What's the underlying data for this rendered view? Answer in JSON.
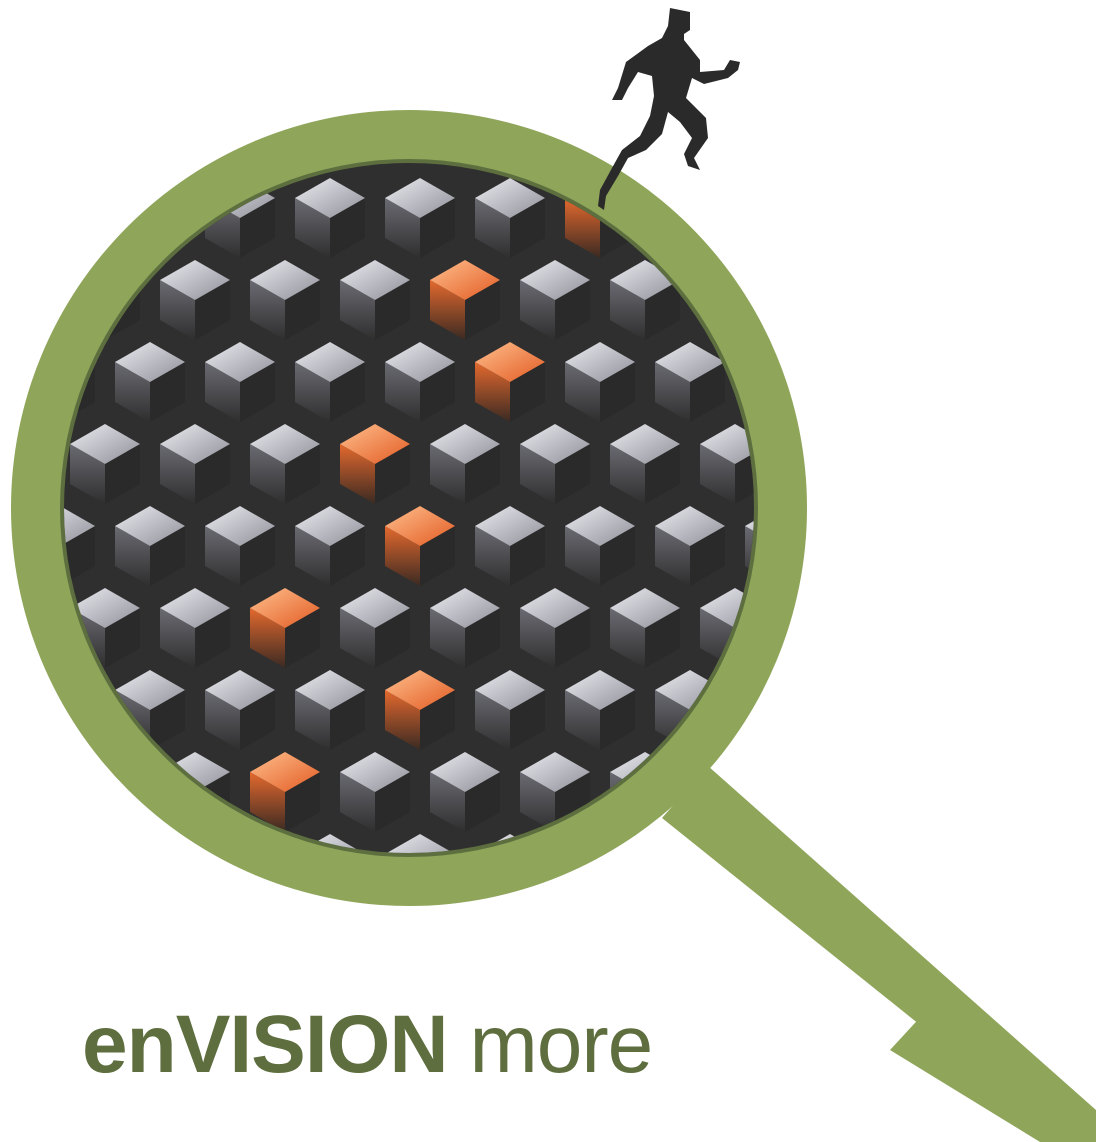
{
  "tagline": {
    "bold_word": "enVISION",
    "light_word": "more"
  },
  "colors": {
    "ring_green": "#8FA55A",
    "ring_edge": "#5E6F3F",
    "tagline_green": "#5E6E3E",
    "board_dark": "#2F2F2F",
    "cube_grey_light": "#E2E2E8",
    "cube_grey_dark": "#8C8C96",
    "cube_orange_light": "#FFB07A",
    "cube_orange_dark": "#E0652A",
    "runner": "#2A2A2A"
  },
  "icons": {
    "magnifier": "magnifying-glass-icon",
    "runner": "running-man-icon"
  }
}
